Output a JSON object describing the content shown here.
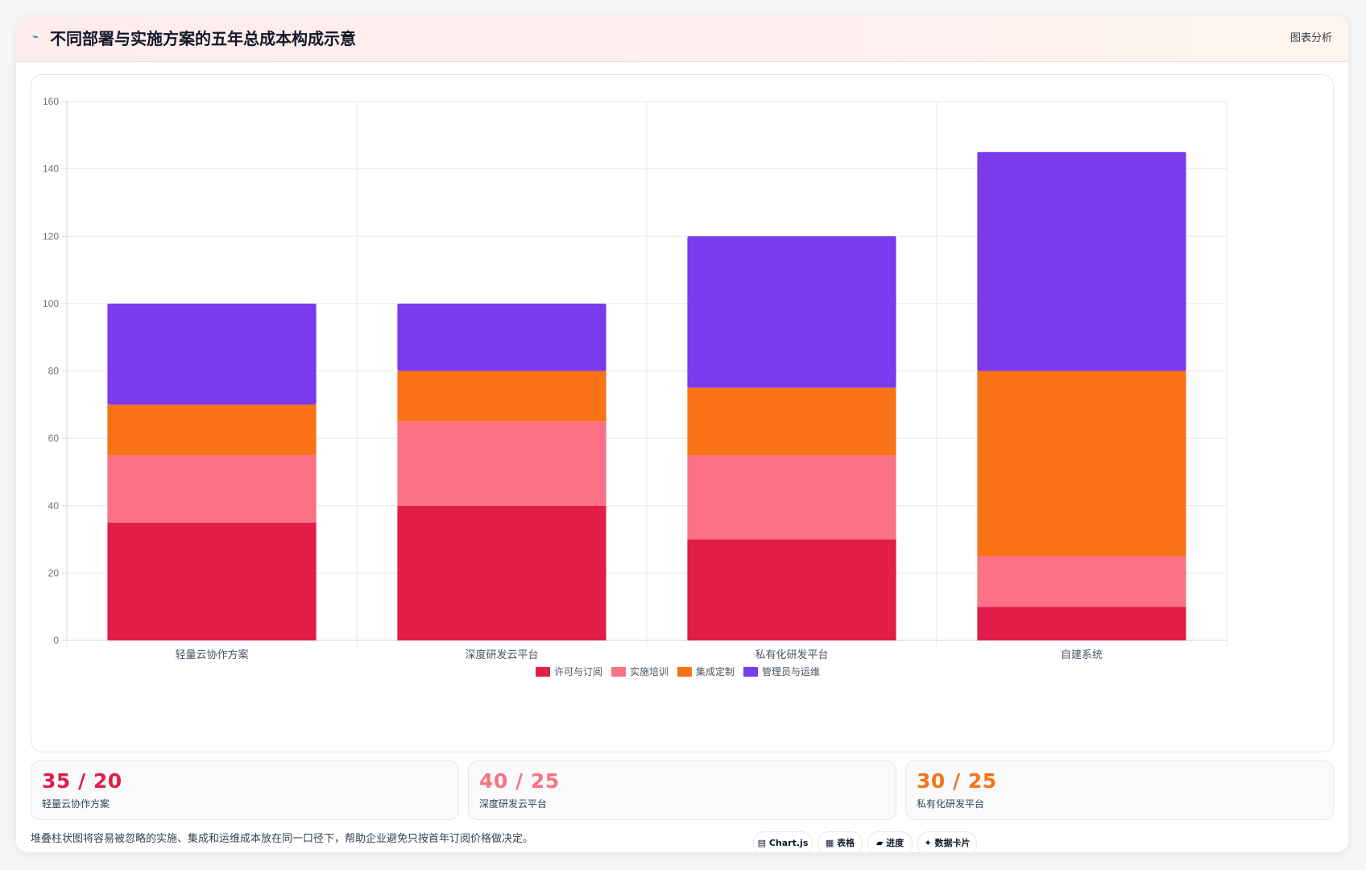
{
  "header": {
    "icon": "trend-line-icon",
    "title": "不同部署与实施方案的五年总成本构成示意",
    "right_label": "图表分析"
  },
  "chart_data": {
    "type": "bar",
    "stacked": true,
    "categories": [
      "轻量云协作方案",
      "深度研发云平台",
      "私有化研发平台",
      "自建系统"
    ],
    "series": [
      {
        "name": "许可与订阅",
        "color": "#e11d48",
        "values": [
          35,
          40,
          30,
          10
        ]
      },
      {
        "name": "实施培训",
        "color": "#fb7185",
        "values": [
          20,
          25,
          25,
          15
        ]
      },
      {
        "name": "集成定制",
        "color": "#f97316",
        "values": [
          15,
          15,
          20,
          55
        ]
      },
      {
        "name": "管理员与运维",
        "color": "#7c3aed",
        "values": [
          30,
          20,
          45,
          65
        ]
      }
    ],
    "ylim": [
      0,
      160
    ],
    "yticks": [
      0,
      20,
      40,
      60,
      80,
      100,
      120,
      140,
      160
    ],
    "grid": true,
    "legend": "bottom"
  },
  "stats": [
    {
      "value": "35 / 20",
      "label": "轻量云协作方案",
      "color": "#e11d48"
    },
    {
      "value": "40 / 25",
      "label": "深度研发云平台",
      "color": "#fb7185"
    },
    {
      "value": "30 / 25",
      "label": "私有化研发平台",
      "color": "#f97316"
    }
  ],
  "footer": {
    "note": "堆叠柱状图将容易被忽略的实施、集成和运维成本放在同一口径下，帮助企业避免只按首年订阅价格做决定。",
    "chips": [
      {
        "label": "Chart.js",
        "icon": "chart-icon"
      },
      {
        "label": "表格",
        "icon": "table-icon"
      },
      {
        "label": "进度",
        "icon": "progress-icon"
      },
      {
        "label": "数据卡片",
        "icon": "sparkle-icon"
      }
    ]
  }
}
